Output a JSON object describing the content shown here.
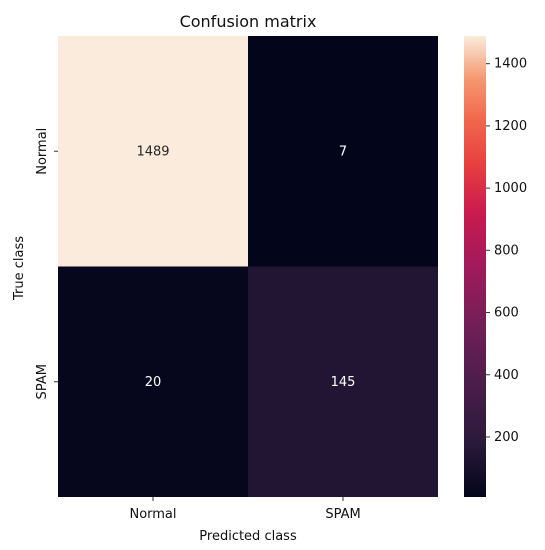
{
  "chart_data": {
    "type": "heatmap",
    "title": "Confusion matrix",
    "xlabel": "Predicted class",
    "ylabel": "True class",
    "x_categories": [
      "Normal",
      "SPAM"
    ],
    "y_categories": [
      "Normal",
      "SPAM"
    ],
    "values": [
      [
        1489,
        7
      ],
      [
        20,
        145
      ]
    ],
    "colorbar": {
      "min": 7,
      "max": 1489,
      "ticks": [
        200,
        400,
        600,
        800,
        1000,
        1200,
        1400
      ],
      "colormap": "rocket",
      "placement": "right"
    },
    "annotation_colors": {
      "on_dark": "#ffffff",
      "on_light": "#262626"
    },
    "grid": false
  }
}
